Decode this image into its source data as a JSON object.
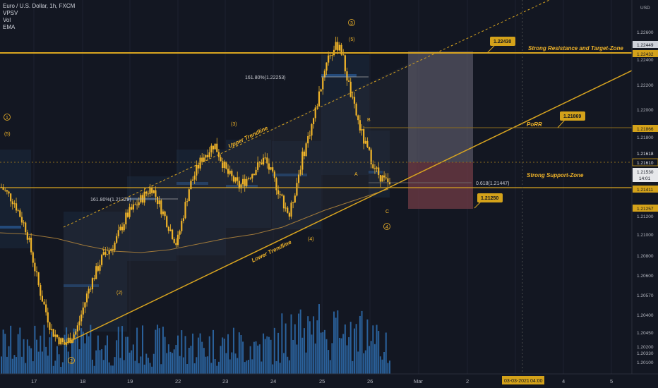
{
  "header": {
    "symbol_line": "Euro / U.S. Dollar, 1h, FXCM",
    "indicators": [
      "VPSV",
      "Vol",
      "EMA"
    ],
    "currency": "USD"
  },
  "colors": {
    "background": "#131722",
    "candle": "#f0b429",
    "trendline": "#d9a520",
    "volume": "#2f6fb0",
    "text": "#b2b5be",
    "label_fill": "#d4a21a",
    "short_zone_top": "#5a5966",
    "short_zone_bottom": "#6b3a44"
  },
  "price_axis": {
    "ticks": [
      "1.22600",
      "1.22400",
      "1.22200",
      "1.22000",
      "1.21800",
      "1.21200",
      "1.21000",
      "1.20800",
      "1.20600",
      "1.20400",
      "1.20200",
      "1.20100"
    ],
    "ticks_mid": [
      "1.20570",
      "1.20450",
      "1.20330"
    ],
    "badges": [
      {
        "text": "1.22449",
        "style": "light"
      },
      {
        "text": "1.22432",
        "style": "gold"
      },
      {
        "text": "1.21866",
        "style": "gold"
      },
      {
        "text": "1.21618",
        "style": "plain"
      },
      {
        "text": "1.21610",
        "style": "outline"
      },
      {
        "text": "1.21530",
        "style": "light"
      },
      {
        "text": "14:01",
        "style": "light"
      },
      {
        "text": "1.21411",
        "style": "gold"
      },
      {
        "text": "1.21257",
        "style": "gold"
      }
    ]
  },
  "time_axis": {
    "labels": [
      "17",
      "18",
      "19",
      "22",
      "23",
      "24",
      "25",
      "26",
      "Mar",
      "2",
      "3",
      "4",
      "5"
    ],
    "cursor_date": "03-03-2021",
    "cursor_time": "04:00"
  },
  "annotations": {
    "resistance_label": "Strong Resistance and Target-Zone",
    "support_label": "Strong Support-Zone",
    "porr_label": "PoRR",
    "upper_trendline": "Upper Trendline",
    "lower_trendline": "Lower Trendline",
    "fib_1": "161.80%(1.22253)",
    "fib_2": "161.80%(1.21329)",
    "fib_3": "0.618(1.21447)",
    "callouts": [
      "1.22430",
      "1.21869",
      "1.21250"
    ],
    "waves": [
      "3",
      "(5)",
      "1",
      "(5)",
      "(3)",
      "(1)",
      "(2)",
      "(4)",
      "A",
      "B",
      "C",
      "4",
      "2"
    ]
  },
  "chart_data": {
    "type": "candlestick",
    "title": "Euro / U.S. Dollar, 1h, FXCM",
    "ylim": [
      1.201,
      1.227
    ],
    "levels": [
      {
        "name": "Strong Resistance and Target-Zone",
        "value": 1.22432
      },
      {
        "name": "PoRR",
        "value": 1.21866
      },
      {
        "name": "Strong Support-Zone",
        "value": 1.21411
      },
      {
        "name": "Dotted level",
        "value": 1.2161
      }
    ],
    "trend_path": [
      1.214,
      1.213,
      1.211,
      1.207,
      1.204,
      1.203,
      1.204,
      1.207,
      1.209,
      1.21,
      1.212,
      1.213,
      1.214,
      1.212,
      1.21,
      1.214,
      1.216,
      1.217,
      1.215,
      1.214,
      1.215,
      1.216,
      1.214,
      1.212,
      1.216,
      1.219,
      1.223,
      1.224,
      1.22,
      1.217,
      1.215,
      1.214
    ]
  }
}
